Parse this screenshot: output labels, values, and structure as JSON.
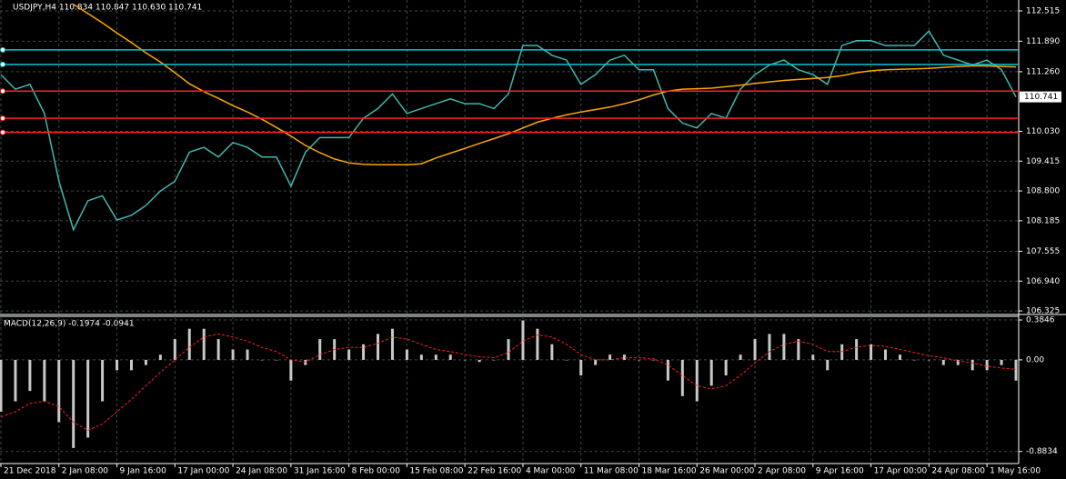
{
  "chart_data": [
    {
      "type": "line",
      "title": "USDJPY,H4  110.834 110.847 110.630 110.741",
      "categories": [
        "21 Dec 2018",
        null,
        null,
        null,
        "2 Jan 08:00",
        null,
        null,
        null,
        "9 Jan 16:00",
        null,
        null,
        null,
        "17 Jan 00:00",
        null,
        null,
        null,
        "24 Jan 08:00",
        null,
        null,
        null,
        "31 Jan 16:00",
        null,
        null,
        null,
        "8 Feb 00:00",
        null,
        null,
        null,
        "15 Feb 08:00",
        null,
        null,
        null,
        "22 Feb 16:00",
        null,
        null,
        null,
        "4 Mar 00:00",
        null,
        null,
        null,
        "11 Mar 08:00",
        null,
        null,
        null,
        "18 Mar 16:00",
        null,
        null,
        null,
        "26 Mar 00:00",
        null,
        null,
        null,
        "2 Apr 08:00",
        null,
        null,
        null,
        "9 Apr 16:00",
        null,
        null,
        null,
        "17 Apr 00:00",
        null,
        null,
        null,
        "24 Apr 08:00",
        null,
        null,
        null,
        "1 May 16:00",
        null,
        null
      ],
      "series": [
        {
          "color": "#3fb8b0",
          "values": [
            111.2,
            110.9,
            111.0,
            110.4,
            109.0,
            108.0,
            108.6,
            108.7,
            108.2,
            108.3,
            108.5,
            108.8,
            109.0,
            109.6,
            109.7,
            109.5,
            109.8,
            109.7,
            109.5,
            109.5,
            108.9,
            109.6,
            109.9,
            109.9,
            109.9,
            110.3,
            110.5,
            110.8,
            110.4,
            110.5,
            110.6,
            110.7,
            110.6,
            110.6,
            110.5,
            110.8,
            111.8,
            111.8,
            111.6,
            111.5,
            111.0,
            111.2,
            111.5,
            111.6,
            111.3,
            111.3,
            110.5,
            110.2,
            110.1,
            110.4,
            110.3,
            110.9,
            111.2,
            111.4,
            111.5,
            111.3,
            111.2,
            111.0,
            111.8,
            111.9,
            111.9,
            111.8,
            111.8,
            111.8,
            112.1,
            111.6,
            111.5,
            111.4,
            111.5,
            111.3,
            110.741
          ]
        },
        {
          "color": "#ffa500",
          "values": [
            null,
            null,
            null,
            null,
            null,
            112.65,
            112.46,
            112.27,
            112.06,
            111.86,
            111.65,
            111.46,
            111.24,
            111.01,
            110.85,
            110.71,
            110.56,
            110.43,
            110.28,
            110.11,
            109.93,
            109.74,
            109.59,
            109.46,
            109.38,
            109.35,
            109.34,
            109.34,
            109.34,
            109.36,
            109.48,
            109.58,
            109.68,
            109.78,
            109.88,
            109.98,
            110.1,
            110.22,
            110.3,
            110.37,
            110.43,
            110.48,
            110.53,
            110.6,
            110.68,
            110.78,
            110.86,
            110.9,
            110.91,
            110.92,
            110.95,
            110.98,
            111.02,
            111.05,
            111.08,
            111.1,
            111.12,
            111.14,
            111.18,
            111.24,
            111.28,
            111.3,
            111.31,
            111.32,
            111.33,
            111.35,
            111.37,
            111.38,
            111.38,
            111.37,
            111.36
          ]
        }
      ],
      "hlines": [
        {
          "value": 111.71,
          "color": "#00c8d0"
        },
        {
          "value": 111.41,
          "color": "#00c8d0"
        },
        {
          "value": 110.86,
          "color": "#ff2020"
        },
        {
          "value": 110.3,
          "color": "#ff2020"
        },
        {
          "value": 110.01,
          "color": "#ff2020"
        }
      ],
      "last_price": 110.741,
      "ylim": [
        106.27,
        112.74
      ],
      "yticks": [
        112.515,
        {
          "value": 111.89,
          "label": "111.890"
        },
        {
          "value": 111.26,
          "label": "111.260"
        },
        {
          "value": 110.03,
          "label": "110.030"
        },
        109.415,
        {
          "value": 108.8,
          "label": "108.800"
        },
        108.185,
        107.555,
        {
          "value": 106.94,
          "label": "106.940"
        },
        106.325
      ],
      "grid": true
    },
    {
      "type": "bar",
      "title": "MACD(12,26,9) -0.1974 -0.0941",
      "color": "#c8c8c8",
      "values": [
        -0.5,
        -0.4,
        -0.3,
        -0.4,
        -0.6,
        -0.85,
        -0.75,
        -0.4,
        -0.1,
        -0.1,
        -0.05,
        0.05,
        0.2,
        0.3,
        0.3,
        0.2,
        0.1,
        0.1,
        0.0,
        0.0,
        -0.2,
        -0.05,
        0.2,
        0.2,
        0.1,
        0.15,
        0.25,
        0.3,
        0.1,
        0.05,
        0.05,
        0.05,
        0.0,
        -0.02,
        0.0,
        0.2,
        0.38,
        0.3,
        0.15,
        0.0,
        -0.15,
        -0.05,
        0.05,
        0.05,
        0.0,
        0.0,
        -0.2,
        -0.35,
        -0.4,
        -0.25,
        -0.15,
        0.05,
        0.2,
        0.25,
        0.25,
        0.2,
        0.05,
        -0.1,
        0.15,
        0.2,
        0.15,
        0.1,
        0.05,
        0.0,
        0.0,
        -0.05,
        -0.05,
        -0.1,
        -0.1,
        -0.05,
        -0.2
      ],
      "signal": {
        "color": "#ff2020",
        "values": [
          -0.55,
          -0.5,
          -0.42,
          -0.4,
          -0.45,
          -0.6,
          -0.68,
          -0.62,
          -0.5,
          -0.38,
          -0.25,
          -0.12,
          0.0,
          0.12,
          0.22,
          0.25,
          0.22,
          0.18,
          0.12,
          0.08,
          0.0,
          -0.02,
          0.05,
          0.1,
          0.12,
          0.12,
          0.16,
          0.22,
          0.2,
          0.15,
          0.1,
          0.08,
          0.05,
          0.03,
          0.02,
          0.07,
          0.18,
          0.24,
          0.22,
          0.15,
          0.05,
          0.0,
          0.0,
          0.02,
          0.02,
          0.01,
          -0.05,
          -0.15,
          -0.25,
          -0.28,
          -0.25,
          -0.15,
          -0.03,
          0.08,
          0.15,
          0.18,
          0.15,
          0.08,
          0.08,
          0.12,
          0.14,
          0.13,
          0.1,
          0.07,
          0.04,
          0.02,
          -0.01,
          -0.03,
          -0.06,
          -0.08,
          -0.09
        ]
      },
      "ylim": [
        -1.0,
        0.42
      ],
      "yticks": [
        0.3846,
        {
          "value": 0,
          "label": "0.00"
        },
        -0.8834
      ],
      "grid": true
    }
  ]
}
